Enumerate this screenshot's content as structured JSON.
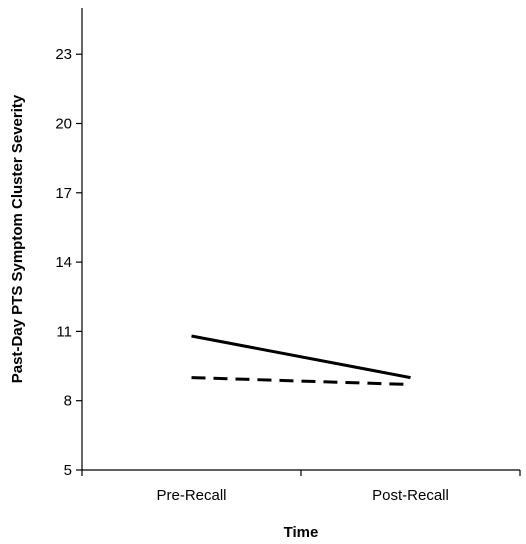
{
  "chart_data": {
    "type": "line",
    "title": "",
    "xlabel": "Time",
    "ylabel": "Past-Day PTS Symptom Cluster Severity",
    "categories": [
      "Pre-Recall",
      "Post-Recall"
    ],
    "ylim": [
      5,
      25
    ],
    "yticks": [
      5,
      8,
      11,
      14,
      17,
      20,
      23
    ],
    "grid": false,
    "legend": "none",
    "series": [
      {
        "style": "solid",
        "color": "#000000",
        "values": [
          10.8,
          9.0
        ]
      },
      {
        "style": "dashed",
        "color": "#000000",
        "values": [
          9.0,
          8.7
        ]
      }
    ]
  }
}
